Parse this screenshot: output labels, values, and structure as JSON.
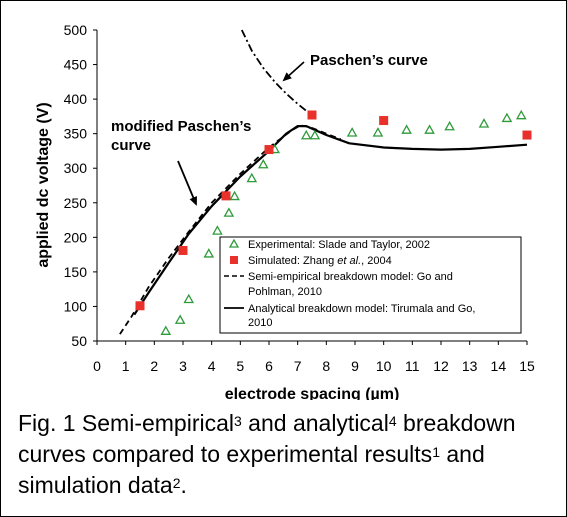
{
  "chart_data": {
    "type": "scatter",
    "xlabel": "electrode spacing (µm)",
    "ylabel": "applied dc voltage (V)",
    "xlim": [
      0,
      15
    ],
    "ylim": [
      50,
      500
    ],
    "xticks": [
      "0",
      "1",
      "2",
      "3",
      "4",
      "5",
      "6",
      "7",
      "8",
      "9",
      "10",
      "11",
      "12",
      "13",
      "14",
      "15"
    ],
    "yticks": [
      "50",
      "100",
      "150",
      "200",
      "250",
      "300",
      "350",
      "400",
      "450",
      "500"
    ],
    "grid": false,
    "legend_position": "bottom-right",
    "annotations": [
      {
        "text": "Paschen’s curve"
      },
      {
        "text": "modified Paschen’s curve"
      }
    ],
    "series": [
      {
        "name": "Experimental: Slade and Taylor, 2002",
        "kind": "marker",
        "marker": "triangle-open",
        "color": "#2e9a3a",
        "points": [
          [
            2.4,
            64
          ],
          [
            2.9,
            80
          ],
          [
            3.2,
            110
          ],
          [
            3.9,
            176
          ],
          [
            4.2,
            209
          ],
          [
            4.6,
            235
          ],
          [
            4.8,
            259
          ],
          [
            5.4,
            285
          ],
          [
            5.8,
            305
          ],
          [
            6.2,
            327
          ],
          [
            7.3,
            347
          ],
          [
            7.6,
            347
          ],
          [
            8.9,
            351
          ],
          [
            9.8,
            351
          ],
          [
            10.8,
            355
          ],
          [
            11.6,
            355
          ],
          [
            12.3,
            360
          ],
          [
            13.5,
            364
          ],
          [
            14.3,
            372
          ],
          [
            14.8,
            376
          ]
        ]
      },
      {
        "name": "Simulated: Zhang et al., 2004",
        "kind": "marker",
        "marker": "square",
        "color": "#e8312a",
        "points": [
          [
            1.5,
            101
          ],
          [
            3.0,
            181
          ],
          [
            4.5,
            260
          ],
          [
            6.0,
            327
          ],
          [
            7.5,
            377
          ],
          [
            10.0,
            369
          ],
          [
            15.0,
            348
          ]
        ]
      },
      {
        "name": "Semi-empirical breakdown model: Go and Pohlman, 2010",
        "kind": "line",
        "style": "dashed",
        "color": "#000000",
        "points": [
          [
            0.8,
            60
          ],
          [
            1.2,
            85
          ],
          [
            1.8,
            128
          ],
          [
            2.5,
            170
          ],
          [
            3.2,
            208
          ],
          [
            4.0,
            250
          ],
          [
            5.0,
            292
          ],
          [
            6.0,
            330
          ],
          [
            6.8,
            355
          ],
          [
            7.1,
            362
          ],
          [
            7.4,
            360
          ],
          [
            8.0,
            350
          ],
          [
            8.5,
            342
          ]
        ]
      },
      {
        "name": "Analytical breakdown model: Tirumala and Go, 2010",
        "kind": "line",
        "style": "solid",
        "color": "#000000",
        "points": [
          [
            1.3,
            88
          ],
          [
            1.8,
            120
          ],
          [
            2.5,
            163
          ],
          [
            3.2,
            205
          ],
          [
            4.0,
            245
          ],
          [
            5.0,
            288
          ],
          [
            6.0,
            325
          ],
          [
            6.6,
            350
          ],
          [
            7.0,
            361
          ],
          [
            7.3,
            361
          ],
          [
            8.0,
            348
          ],
          [
            8.8,
            336
          ],
          [
            10.0,
            330
          ],
          [
            11.0,
            328
          ],
          [
            12.0,
            327
          ],
          [
            13.0,
            328
          ],
          [
            14.0,
            331
          ],
          [
            15.0,
            334
          ]
        ]
      },
      {
        "name": "",
        "kind": "line",
        "style": "dashdot",
        "color": "#000000",
        "points": [
          [
            5.05,
            500
          ],
          [
            5.4,
            470
          ],
          [
            5.8,
            445
          ],
          [
            6.2,
            425
          ],
          [
            6.6,
            408
          ],
          [
            7.0,
            393
          ],
          [
            7.3,
            383
          ],
          [
            7.5,
            375
          ]
        ]
      }
    ]
  },
  "caption": {
    "line1_a": "Fig. 1 Semi-empirical",
    "line1_sup1": "3",
    "line1_b": " and analytical",
    "line1_sup2": "4",
    "line1_c": " breakdown",
    "line2_a": "curves compared to experimental results",
    "line2_sup": "1",
    "line2_b": " and",
    "line3_a": "simulation data",
    "line3_sup": "2",
    "line3_b": "."
  }
}
